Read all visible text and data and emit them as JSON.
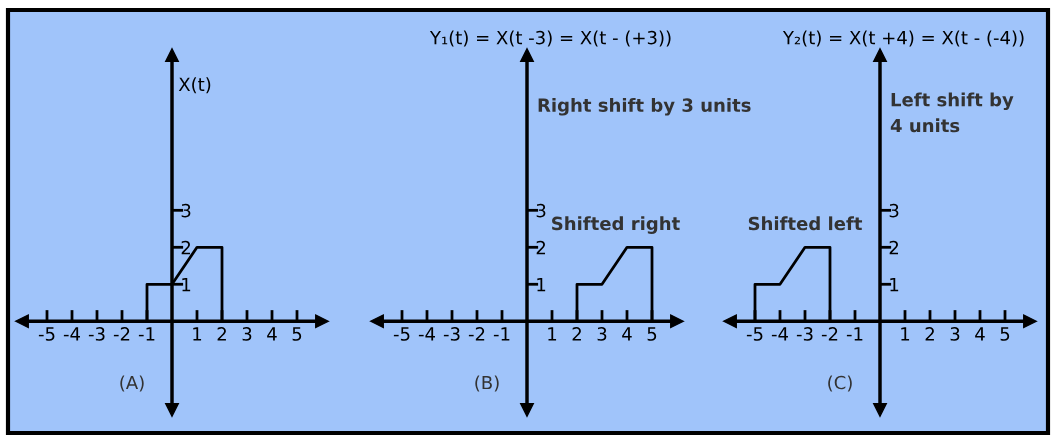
{
  "chart_data": [
    {
      "type": "line",
      "ylabel": "X(t)",
      "xlim": [
        -6,
        6
      ],
      "ylim": [
        -2.4,
        7.2
      ],
      "xticks": [
        -5,
        -4,
        -3,
        -2,
        -1,
        1,
        2,
        3,
        4,
        5
      ],
      "yticks": [
        1,
        2,
        3
      ],
      "grid": false,
      "legend": false,
      "marker": "none",
      "line_style": "solid",
      "series": [
        {
          "color": "#000000",
          "x": [
            -1,
            -1,
            0,
            1,
            2,
            2
          ],
          "values": [
            0,
            1,
            1,
            2,
            2,
            0
          ]
        }
      ],
      "annotations": [
        "(A)"
      ]
    },
    {
      "type": "line",
      "title": "Y₁(t) = X(t -3) = X(t - (+3))",
      "xlim": [
        -6,
        6
      ],
      "ylim": [
        -2.4,
        7.2
      ],
      "xticks": [
        -5,
        -4,
        -3,
        -2,
        -1,
        1,
        2,
        3,
        4,
        5
      ],
      "yticks": [
        1,
        2,
        3
      ],
      "grid": false,
      "legend": false,
      "marker": "none",
      "line_style": "solid",
      "series": [
        {
          "color": "#000000",
          "x": [
            2,
            2,
            3,
            4,
            5,
            5
          ],
          "values": [
            0,
            1,
            1,
            2,
            2,
            0
          ]
        }
      ],
      "annotations": [
        "Right shift by 3 units",
        "Shifted right",
        "(B)"
      ]
    },
    {
      "type": "line",
      "title": "Y₂(t) = X(t +4) = X(t - (-4))",
      "xlim": [
        -6,
        6
      ],
      "ylim": [
        -2.4,
        7.2
      ],
      "xticks": [
        -5,
        -4,
        -3,
        -2,
        -1,
        1,
        2,
        3,
        4,
        5
      ],
      "yticks": [
        1,
        2,
        3
      ],
      "grid": false,
      "legend": false,
      "marker": "none",
      "line_style": "solid",
      "series": [
        {
          "color": "#000000",
          "x": [
            -5,
            -5,
            -4,
            -3,
            -2,
            -2
          ],
          "values": [
            0,
            1,
            1,
            2,
            2,
            0
          ]
        }
      ],
      "annotations": [
        "Left shift by\n4 units",
        "Shifted left",
        "(C)"
      ]
    }
  ]
}
